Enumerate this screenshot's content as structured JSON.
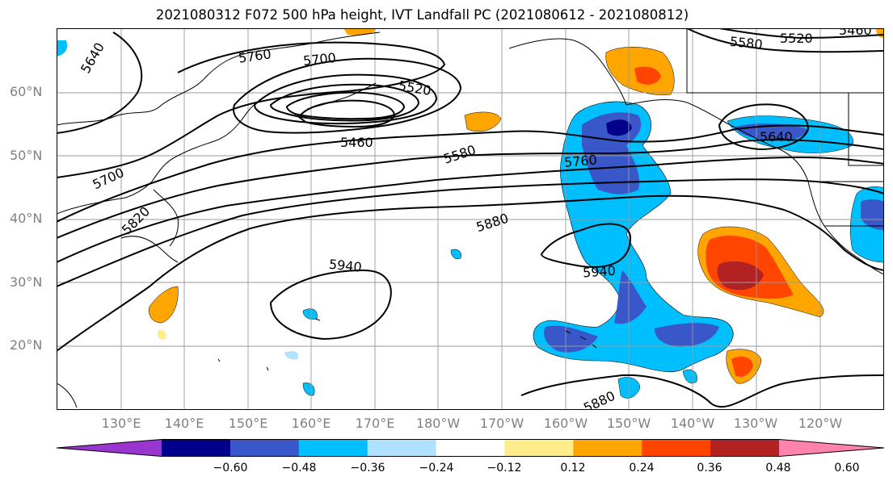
{
  "title": "2021080312 F072 500 hPa height, IVT Landfall PC (2021080612 - 2021080812)",
  "axes": {
    "lat_ticks": [
      "60°N",
      "50°N",
      "40°N",
      "30°N",
      "20°N"
    ],
    "lon_ticks": [
      "130°E",
      "140°E",
      "150°E",
      "160°E",
      "170°E",
      "180°W",
      "170°W",
      "160°W",
      "150°W",
      "140°W",
      "130°W",
      "120°W"
    ]
  },
  "contour_labels": [
    "5640",
    "5760",
    "5700",
    "5520",
    "5460",
    "5580",
    "5700",
    "5820",
    "5760",
    "5880",
    "5940",
    "5940",
    "5880",
    "5580",
    "5520",
    "5460",
    "5640"
  ],
  "colorbar": {
    "ticks": [
      "−0.60",
      "−0.48",
      "−0.36",
      "−0.24",
      "−0.12",
      "0.12",
      "0.24",
      "0.36",
      "0.48",
      "0.60"
    ],
    "colors": [
      "#9a35d0",
      "#00008b",
      "#3a57c9",
      "#00bfff",
      "#b0e2ff",
      "#ffffff",
      "#ffec8b",
      "#ffa500",
      "#ff4500",
      "#b22222",
      "#ff83ac"
    ]
  }
}
